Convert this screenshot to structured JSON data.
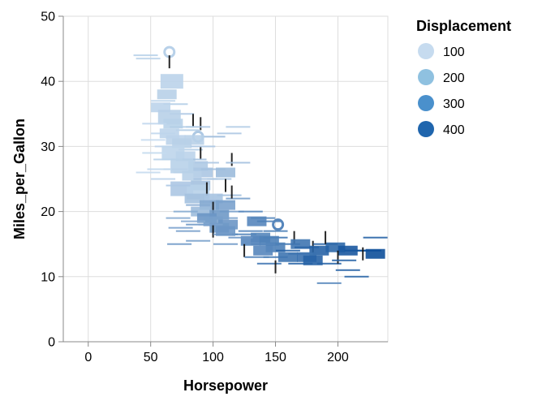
{
  "chart_data": {
    "type": "scatter",
    "title": "",
    "xlabel": "Horsepower",
    "ylabel": "Miles_per_Gallon",
    "xlim": [
      -20,
      240
    ],
    "ylim": [
      0,
      50
    ],
    "x_ticks": [
      0,
      50,
      100,
      150,
      200
    ],
    "y_ticks": [
      0,
      10,
      20,
      30,
      40,
      50
    ],
    "grid": true,
    "legend": {
      "title": "Displacement",
      "placement": "right",
      "entries": [
        {
          "label": "100",
          "value": 100,
          "color": "#c6dbef"
        },
        {
          "label": "200",
          "value": 200,
          "color": "#8fc1e0"
        },
        {
          "label": "300",
          "value": 300,
          "color": "#4a90cc"
        },
        {
          "label": "400",
          "value": 400,
          "color": "#1f65ad"
        }
      ]
    },
    "color_scale": {
      "field": "Displacement",
      "domain": [
        68,
        455
      ],
      "range": [
        "#c6dbef",
        "#0d4f9a"
      ]
    },
    "points": [
      {
        "x": 46,
        "y": 44,
        "d": 97,
        "shape": "hline"
      },
      {
        "x": 48,
        "y": 43.5,
        "d": 91,
        "shape": "hline"
      },
      {
        "x": 65,
        "y": 44.5,
        "d": 97,
        "shape": "circle"
      },
      {
        "x": 65,
        "y": 43,
        "d": 90,
        "shape": "vline"
      },
      {
        "x": 67,
        "y": 40,
        "d": 90,
        "shape": "square-lg"
      },
      {
        "x": 63,
        "y": 38,
        "d": 98,
        "shape": "square"
      },
      {
        "x": 60,
        "y": 37,
        "d": 85,
        "shape": "hline"
      },
      {
        "x": 70,
        "y": 36.5,
        "d": 105,
        "shape": "hline"
      },
      {
        "x": 58,
        "y": 36,
        "d": 86,
        "shape": "square"
      },
      {
        "x": 75,
        "y": 35,
        "d": 119,
        "shape": "hline"
      },
      {
        "x": 65,
        "y": 34.5,
        "d": 98,
        "shape": "square-lg"
      },
      {
        "x": 68,
        "y": 33.5,
        "d": 97,
        "shape": "square"
      },
      {
        "x": 84,
        "y": 34,
        "d": 135,
        "shape": "vline"
      },
      {
        "x": 90,
        "y": 33.5,
        "d": 140,
        "shape": "vline"
      },
      {
        "x": 88,
        "y": 33,
        "d": 120,
        "shape": "hline"
      },
      {
        "x": 80,
        "y": 32.5,
        "d": 107,
        "shape": "hline"
      },
      {
        "x": 88,
        "y": 31.5,
        "d": 121,
        "shape": "circle"
      },
      {
        "x": 60,
        "y": 32,
        "d": 79,
        "shape": "hline"
      },
      {
        "x": 70,
        "y": 31,
        "d": 90,
        "shape": "square"
      },
      {
        "x": 75,
        "y": 30.5,
        "d": 98,
        "shape": "square"
      },
      {
        "x": 63,
        "y": 30,
        "d": 89,
        "shape": "hline"
      },
      {
        "x": 82,
        "y": 29.5,
        "d": 108,
        "shape": "hline"
      },
      {
        "x": 90,
        "y": 29,
        "d": 151,
        "shape": "vline"
      },
      {
        "x": 68,
        "y": 29,
        "d": 85,
        "shape": "square-lg"
      },
      {
        "x": 78,
        "y": 28.5,
        "d": 91,
        "shape": "square"
      },
      {
        "x": 62,
        "y": 28,
        "d": 97,
        "shape": "hline"
      },
      {
        "x": 85,
        "y": 28,
        "d": 140,
        "shape": "hline"
      },
      {
        "x": 95,
        "y": 27.5,
        "d": 121,
        "shape": "hline"
      },
      {
        "x": 88,
        "y": 27,
        "d": 116,
        "shape": "square"
      },
      {
        "x": 75,
        "y": 27,
        "d": 97,
        "shape": "square-lg"
      },
      {
        "x": 70,
        "y": 26.5,
        "d": 98,
        "shape": "hline"
      },
      {
        "x": 57,
        "y": 26.5,
        "d": 79,
        "shape": "hline"
      },
      {
        "x": 92,
        "y": 26,
        "d": 122,
        "shape": "square"
      },
      {
        "x": 100,
        "y": 26.5,
        "d": 140,
        "shape": "hline"
      },
      {
        "x": 83,
        "y": 25.5,
        "d": 98,
        "shape": "square"
      },
      {
        "x": 110,
        "y": 26,
        "d": 156,
        "shape": "square"
      },
      {
        "x": 115,
        "y": 28,
        "d": 121,
        "shape": "vline"
      },
      {
        "x": 120,
        "y": 27.5,
        "d": 140,
        "shape": "hline"
      },
      {
        "x": 105,
        "y": 25,
        "d": 135,
        "shape": "hline"
      },
      {
        "x": 90,
        "y": 24,
        "d": 140,
        "shape": "square"
      },
      {
        "x": 75,
        "y": 23.5,
        "d": 122,
        "shape": "square-lg"
      },
      {
        "x": 88,
        "y": 23,
        "d": 97,
        "shape": "square-lg"
      },
      {
        "x": 95,
        "y": 23.5,
        "d": 151,
        "shape": "vline"
      },
      {
        "x": 110,
        "y": 24,
        "d": 168,
        "shape": "vline"
      },
      {
        "x": 113,
        "y": 22.5,
        "d": 146,
        "shape": "hline"
      },
      {
        "x": 100,
        "y": 22,
        "d": 134,
        "shape": "square"
      },
      {
        "x": 85,
        "y": 22,
        "d": 140,
        "shape": "square"
      },
      {
        "x": 120,
        "y": 22,
        "d": 231,
        "shape": "hline"
      },
      {
        "x": 107,
        "y": 21.5,
        "d": 199,
        "shape": "hline"
      },
      {
        "x": 97,
        "y": 21,
        "d": 200,
        "shape": "square"
      },
      {
        "x": 110,
        "y": 21,
        "d": 225,
        "shape": "square"
      },
      {
        "x": 100,
        "y": 20.5,
        "d": 250,
        "shape": "vline"
      },
      {
        "x": 115,
        "y": 20,
        "d": 232,
        "shape": "hline"
      },
      {
        "x": 90,
        "y": 20,
        "d": 156,
        "shape": "square"
      },
      {
        "x": 105,
        "y": 19.5,
        "d": 250,
        "shape": "square"
      },
      {
        "x": 95,
        "y": 19,
        "d": 258,
        "shape": "square"
      },
      {
        "x": 110,
        "y": 19,
        "d": 225,
        "shape": "hline"
      },
      {
        "x": 100,
        "y": 18.5,
        "d": 232,
        "shape": "square"
      },
      {
        "x": 88,
        "y": 18,
        "d": 250,
        "shape": "hline"
      },
      {
        "x": 112,
        "y": 18,
        "d": 258,
        "shape": "square"
      },
      {
        "x": 135,
        "y": 18.5,
        "d": 302,
        "shape": "square"
      },
      {
        "x": 145,
        "y": 18.5,
        "d": 318,
        "shape": "hline"
      },
      {
        "x": 152,
        "y": 18,
        "d": 302,
        "shape": "circle"
      },
      {
        "x": 140,
        "y": 19,
        "d": 304,
        "shape": "hline"
      },
      {
        "x": 130,
        "y": 20,
        "d": 302,
        "shape": "hline"
      },
      {
        "x": 105,
        "y": 17.5,
        "d": 250,
        "shape": "square"
      },
      {
        "x": 80,
        "y": 17,
        "d": 232,
        "shape": "hline"
      },
      {
        "x": 100,
        "y": 17,
        "d": 225,
        "shape": "vline"
      },
      {
        "x": 110,
        "y": 16.5,
        "d": 258,
        "shape": "hline"
      },
      {
        "x": 125,
        "y": 16.5,
        "d": 318,
        "shape": "hline"
      },
      {
        "x": 138,
        "y": 16,
        "d": 304,
        "shape": "square"
      },
      {
        "x": 150,
        "y": 16,
        "d": 350,
        "shape": "hline"
      },
      {
        "x": 130,
        "y": 15.5,
        "d": 302,
        "shape": "square"
      },
      {
        "x": 145,
        "y": 15.5,
        "d": 318,
        "shape": "square"
      },
      {
        "x": 165,
        "y": 16,
        "d": 350,
        "shape": "vline"
      },
      {
        "x": 160,
        "y": 15,
        "d": 351,
        "shape": "hline"
      },
      {
        "x": 170,
        "y": 15,
        "d": 350,
        "shape": "square"
      },
      {
        "x": 175,
        "y": 14.5,
        "d": 400,
        "shape": "hline"
      },
      {
        "x": 150,
        "y": 14.5,
        "d": 318,
        "shape": "square"
      },
      {
        "x": 140,
        "y": 14,
        "d": 302,
        "shape": "square"
      },
      {
        "x": 180,
        "y": 14.5,
        "d": 360,
        "shape": "vline"
      },
      {
        "x": 190,
        "y": 15,
        "d": 400,
        "shape": "hline"
      },
      {
        "x": 198,
        "y": 14.5,
        "d": 383,
        "shape": "square"
      },
      {
        "x": 185,
        "y": 14,
        "d": 400,
        "shape": "square"
      },
      {
        "x": 208,
        "y": 14,
        "d": 429,
        "shape": "square"
      },
      {
        "x": 215,
        "y": 14,
        "d": 440,
        "shape": "hline"
      },
      {
        "x": 225,
        "y": 14,
        "d": 455,
        "shape": "hline"
      },
      {
        "x": 230,
        "y": 13.5,
        "d": 455,
        "shape": "square"
      },
      {
        "x": 220,
        "y": 13.5,
        "d": 440,
        "shape": "vline"
      },
      {
        "x": 160,
        "y": 13,
        "d": 350,
        "shape": "square"
      },
      {
        "x": 150,
        "y": 13,
        "d": 351,
        "shape": "hline"
      },
      {
        "x": 175,
        "y": 13,
        "d": 360,
        "shape": "square"
      },
      {
        "x": 180,
        "y": 12.5,
        "d": 400,
        "shape": "square"
      },
      {
        "x": 193,
        "y": 12,
        "d": 400,
        "shape": "hline"
      },
      {
        "x": 145,
        "y": 12,
        "d": 350,
        "shape": "hline"
      },
      {
        "x": 150,
        "y": 11.5,
        "d": 351,
        "shape": "vline"
      },
      {
        "x": 170,
        "y": 12,
        "d": 400,
        "shape": "hline"
      },
      {
        "x": 208,
        "y": 11,
        "d": 400,
        "shape": "hline"
      },
      {
        "x": 215,
        "y": 10,
        "d": 383,
        "shape": "hline"
      },
      {
        "x": 193,
        "y": 9,
        "d": 304,
        "shape": "hline"
      },
      {
        "x": 190,
        "y": 16,
        "d": 383,
        "shape": "vline"
      },
      {
        "x": 230,
        "y": 16,
        "d": 400,
        "shape": "hline"
      },
      {
        "x": 73,
        "y": 15,
        "d": 250,
        "shape": "hline"
      },
      {
        "x": 88,
        "y": 15.5,
        "d": 232,
        "shape": "hline"
      },
      {
        "x": 110,
        "y": 15,
        "d": 250,
        "shape": "hline"
      },
      {
        "x": 53,
        "y": 33.5,
        "d": 79,
        "shape": "hline"
      },
      {
        "x": 75,
        "y": 33,
        "d": 105,
        "shape": "hline"
      },
      {
        "x": 65,
        "y": 32,
        "d": 86,
        "shape": "square"
      },
      {
        "x": 52,
        "y": 31,
        "d": 68,
        "shape": "hline"
      },
      {
        "x": 92,
        "y": 30,
        "d": 120,
        "shape": "hline"
      },
      {
        "x": 100,
        "y": 31.5,
        "d": 156,
        "shape": "hline"
      },
      {
        "x": 120,
        "y": 33,
        "d": 107,
        "shape": "hline"
      },
      {
        "x": 113,
        "y": 32,
        "d": 121,
        "shape": "hline"
      },
      {
        "x": 85,
        "y": 31,
        "d": 98,
        "shape": "square"
      },
      {
        "x": 78,
        "y": 26,
        "d": 98,
        "shape": "hline"
      },
      {
        "x": 53,
        "y": 29,
        "d": 72,
        "shape": "hline"
      },
      {
        "x": 48,
        "y": 26,
        "d": 71,
        "shape": "hline"
      },
      {
        "x": 60,
        "y": 25,
        "d": 90,
        "shape": "hline"
      },
      {
        "x": 94,
        "y": 25,
        "d": 133,
        "shape": "hline"
      },
      {
        "x": 72,
        "y": 24,
        "d": 120,
        "shape": "hline"
      },
      {
        "x": 115,
        "y": 23,
        "d": 198,
        "shape": "vline"
      },
      {
        "x": 88,
        "y": 21,
        "d": 200,
        "shape": "hline"
      },
      {
        "x": 78,
        "y": 20,
        "d": 199,
        "shape": "hline"
      },
      {
        "x": 72,
        "y": 19,
        "d": 200,
        "shape": "hline"
      },
      {
        "x": 98,
        "y": 18,
        "d": 225,
        "shape": "hline"
      },
      {
        "x": 84,
        "y": 18.5,
        "d": 200,
        "shape": "hline"
      },
      {
        "x": 74,
        "y": 17.5,
        "d": 225,
        "shape": "hline"
      },
      {
        "x": 110,
        "y": 17,
        "d": 258,
        "shape": "square"
      },
      {
        "x": 130,
        "y": 17,
        "d": 302,
        "shape": "hline"
      },
      {
        "x": 122,
        "y": 16,
        "d": 258,
        "shape": "hline"
      },
      {
        "x": 150,
        "y": 17,
        "d": 318,
        "shape": "hline"
      },
      {
        "x": 140,
        "y": 15,
        "d": 302,
        "shape": "hline"
      },
      {
        "x": 125,
        "y": 14,
        "d": 304,
        "shape": "vline"
      },
      {
        "x": 135,
        "y": 13,
        "d": 318,
        "shape": "hline"
      },
      {
        "x": 170,
        "y": 13.5,
        "d": 350,
        "shape": "hline"
      },
      {
        "x": 160,
        "y": 14,
        "d": 400,
        "shape": "hline"
      },
      {
        "x": 200,
        "y": 13,
        "d": 383,
        "shape": "vline"
      },
      {
        "x": 205,
        "y": 12.5,
        "d": 400,
        "shape": "hline"
      }
    ]
  }
}
